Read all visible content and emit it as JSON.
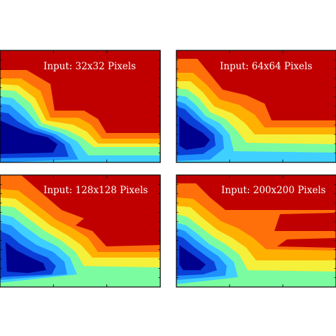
{
  "chart_data": [
    {
      "type": "heatmap",
      "title": "Input: 32x32 Pixels",
      "levels": 8,
      "colormap": [
        "#00008f",
        "#0a3fd8",
        "#1e90ff",
        "#3fd0ff",
        "#7cfca0",
        "#f5f03a",
        "#ffb000",
        "#ff6f0a",
        "#c00000"
      ],
      "bands": [
        {
          "level": 0,
          "region": "outer"
        },
        {
          "level": 1,
          "region": "dark-blue core, lower-left"
        },
        {
          "level": 8,
          "region": "upper-right"
        }
      ]
    },
    {
      "type": "heatmap",
      "title": "Input: 64x64 Pixels",
      "levels": 8,
      "colormap": [
        "#00008f",
        "#0a3fd8",
        "#1e90ff",
        "#3fd0ff",
        "#7cfca0",
        "#f5f03a",
        "#ffb000",
        "#ff6f0a",
        "#c00000"
      ],
      "bands": []
    },
    {
      "type": "heatmap",
      "title": "Input: 128x128 Pixels",
      "levels": 8,
      "colormap": [
        "#00008f",
        "#0a3fd8",
        "#1e90ff",
        "#3fd0ff",
        "#7cfca0",
        "#f5f03a",
        "#ffb000",
        "#ff6f0a",
        "#c00000"
      ],
      "bands": []
    },
    {
      "type": "heatmap",
      "title": "Input: 200x200 Pixels",
      "levels": 8,
      "colormap": [
        "#00008f",
        "#0a3fd8",
        "#1e90ff",
        "#3fd0ff",
        "#7cfca0",
        "#f5f03a",
        "#ffb000",
        "#ff6f0a",
        "#c00000"
      ],
      "bands": []
    }
  ]
}
